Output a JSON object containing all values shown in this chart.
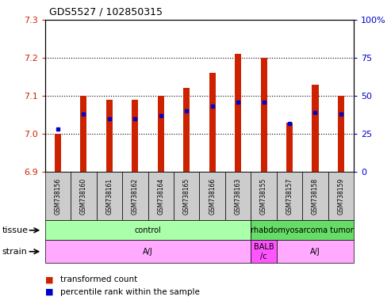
{
  "title": "GDS5527 / 102850315",
  "samples": [
    "GSM738156",
    "GSM738160",
    "GSM738161",
    "GSM738162",
    "GSM738164",
    "GSM738165",
    "GSM738166",
    "GSM738163",
    "GSM738155",
    "GSM738157",
    "GSM738158",
    "GSM738159"
  ],
  "transformed_count": [
    7.0,
    7.1,
    7.09,
    7.09,
    7.1,
    7.12,
    7.16,
    7.21,
    7.2,
    7.03,
    7.13,
    7.1
  ],
  "percentile_rank": [
    28,
    38,
    35,
    35,
    37,
    40,
    43,
    46,
    46,
    32,
    39,
    38
  ],
  "ymin": 6.9,
  "ymax": 7.3,
  "yticks_left": [
    6.9,
    7.0,
    7.1,
    7.2,
    7.3
  ],
  "yticks_right": [
    0,
    25,
    50,
    75,
    100
  ],
  "left_color": "#cc2200",
  "right_color": "#0000cc",
  "bar_color": "#cc2200",
  "dot_color": "#0000cc",
  "tissue_groups": [
    {
      "label": "control",
      "start": 0,
      "end": 8,
      "color": "#aaffaa"
    },
    {
      "label": "rhabdomyosarcoma tumor",
      "start": 8,
      "end": 12,
      "color": "#66dd66"
    }
  ],
  "strain_groups": [
    {
      "label": "A/J",
      "start": 0,
      "end": 8,
      "color": "#ffaaff"
    },
    {
      "label": "BALB\n/c",
      "start": 8,
      "end": 9,
      "color": "#ff55ff"
    },
    {
      "label": "A/J",
      "start": 9,
      "end": 12,
      "color": "#ffaaff"
    }
  ],
  "tissue_label": "tissue",
  "strain_label": "strain",
  "legend_items": [
    {
      "label": "transformed count",
      "color": "#cc2200"
    },
    {
      "label": "percentile rank within the sample",
      "color": "#0000cc"
    }
  ],
  "bar_width": 0.25,
  "xtick_bg": "#cccccc",
  "plot_bg": "#ffffff"
}
